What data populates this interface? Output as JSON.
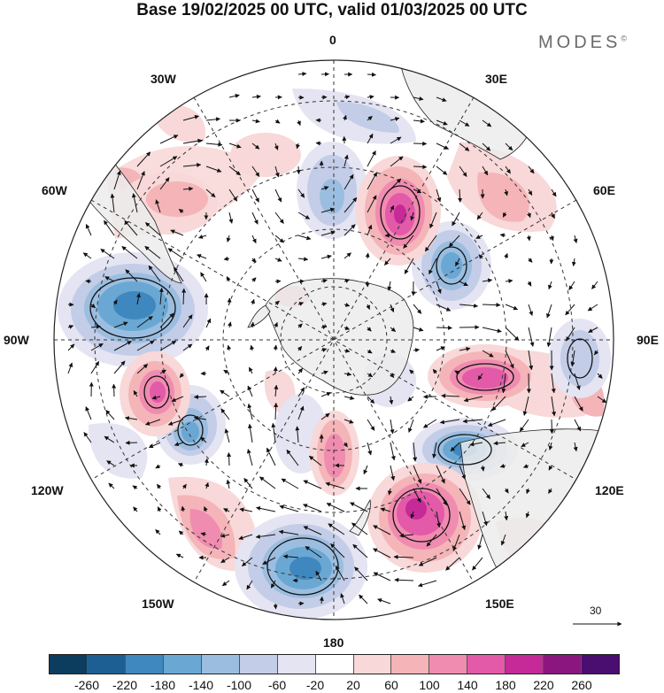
{
  "title": "Base 19/02/2025 00 UTC, valid 01/03/2025 00 UTC",
  "brand": "MODES",
  "brand_mark": "©",
  "longitude_labels": {
    "lon_0": "0",
    "lon_30e": "30E",
    "lon_60e": "60E",
    "lon_90e": "90E",
    "lon_120e": "120E",
    "lon_150e": "150E",
    "lon_180": "180",
    "lon_150w": "150W",
    "lon_120w": "120W",
    "lon_90w": "90W",
    "lon_60w": "60W",
    "lon_30w": "30W"
  },
  "reference_vector": "30",
  "projection": "south polar stereographic",
  "colorbar": {
    "ticks": [
      "-260",
      "-220",
      "-180",
      "-140",
      "-100",
      "-60",
      "-20",
      "20",
      "60",
      "100",
      "140",
      "180",
      "220",
      "260"
    ],
    "colors": [
      "#0c3c5e",
      "#1d5f93",
      "#3f87bf",
      "#6aa8d3",
      "#9bbee0",
      "#c3cde8",
      "#e4e4f2",
      "#ffffff",
      "#f8d8d8",
      "#f4b4b8",
      "#f08cb0",
      "#e25aa8",
      "#c52a98",
      "#8c1680",
      "#4a0d70"
    ]
  },
  "anomaly_centers": [
    {
      "sign": "negative",
      "level": "-180"
    },
    {
      "sign": "negative",
      "level": "-180"
    },
    {
      "sign": "negative",
      "level": "-180"
    },
    {
      "sign": "negative",
      "level": "-140"
    },
    {
      "sign": "negative",
      "level": "-140"
    },
    {
      "sign": "negative",
      "level": "-100"
    },
    {
      "sign": "positive",
      "level": "180"
    },
    {
      "sign": "positive",
      "level": "180"
    },
    {
      "sign": "positive",
      "level": "140"
    },
    {
      "sign": "positive",
      "level": "140"
    },
    {
      "sign": "positive",
      "level": "140"
    },
    {
      "sign": "positive",
      "level": "100"
    }
  ]
}
